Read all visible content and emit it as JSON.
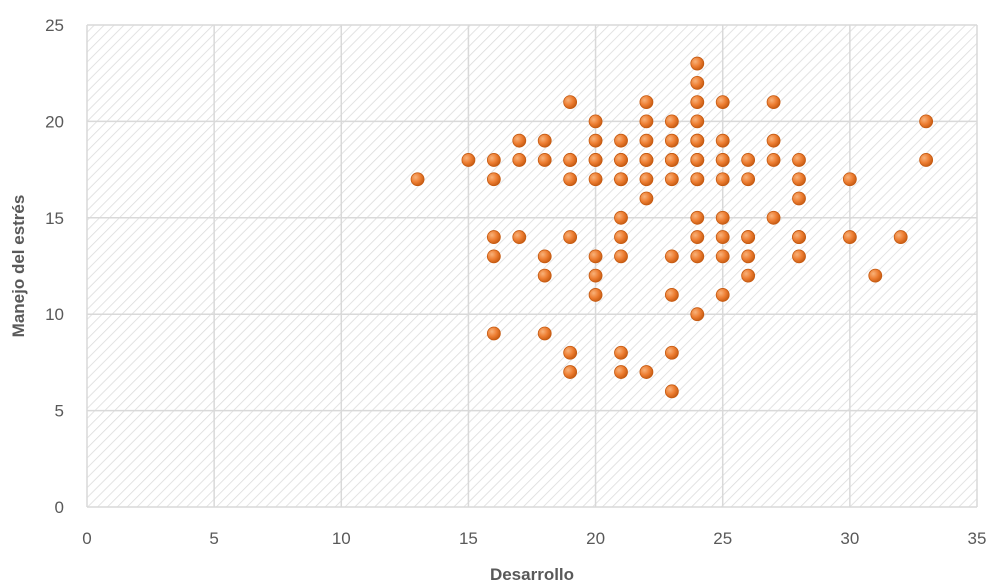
{
  "chart_data": {
    "type": "scatter",
    "xlabel": "Desarrollo",
    "ylabel": "Manejo del estrés",
    "xlim": [
      0,
      35
    ],
    "ylim": [
      0,
      25
    ],
    "xticks": [
      "0",
      "5",
      "10",
      "15",
      "20",
      "25",
      "30",
      "35"
    ],
    "yticks": [
      "0",
      "5",
      "10",
      "15",
      "20",
      "25"
    ],
    "grid": true,
    "legend": "none",
    "colors": {
      "point": "#ED7D31",
      "point_edge": "#C55A11",
      "grid": "#D9D9D9",
      "hatch": "#DCDCDC"
    },
    "series": [
      {
        "x": [
          13,
          15,
          16,
          16,
          16,
          16,
          16,
          17,
          17,
          17,
          18,
          18,
          18,
          18,
          18,
          19,
          19,
          19,
          19,
          19,
          19,
          19,
          20,
          20,
          20,
          20,
          20,
          20,
          20,
          20,
          21,
          21,
          21,
          21,
          21,
          21,
          21,
          21,
          21,
          21,
          22,
          22,
          22,
          22,
          22,
          22,
          22,
          22,
          23,
          23,
          23,
          23,
          23,
          23,
          23,
          23,
          23,
          24,
          24,
          24,
          24,
          24,
          24,
          24,
          24,
          24,
          24,
          24,
          24,
          24,
          24,
          25,
          25,
          25,
          25,
          25,
          25,
          25,
          25,
          25,
          26,
          26,
          26,
          26,
          26,
          26,
          27,
          27,
          27,
          27,
          28,
          28,
          28,
          28,
          28,
          28,
          30,
          30,
          31,
          32,
          33,
          33
        ],
        "y": [
          17,
          18,
          18,
          17,
          14,
          13,
          9,
          19,
          18,
          14,
          19,
          18,
          13,
          12,
          9,
          21,
          18,
          17,
          14,
          8,
          7,
          18,
          20,
          19,
          18,
          17,
          13,
          12,
          11,
          18,
          19,
          18,
          17,
          15,
          14,
          13,
          8,
          7,
          18,
          17,
          21,
          20,
          19,
          18,
          17,
          16,
          7,
          18,
          20,
          19,
          18,
          17,
          13,
          11,
          8,
          6,
          18,
          23,
          22,
          21,
          20,
          19,
          18,
          17,
          15,
          14,
          13,
          10,
          19,
          18,
          17,
          21,
          19,
          18,
          17,
          15,
          14,
          13,
          11,
          18,
          18,
          17,
          14,
          13,
          12,
          14,
          21,
          19,
          18,
          15,
          18,
          17,
          16,
          14,
          13,
          14,
          17,
          14,
          12,
          14,
          20,
          18
        ]
      }
    ]
  }
}
